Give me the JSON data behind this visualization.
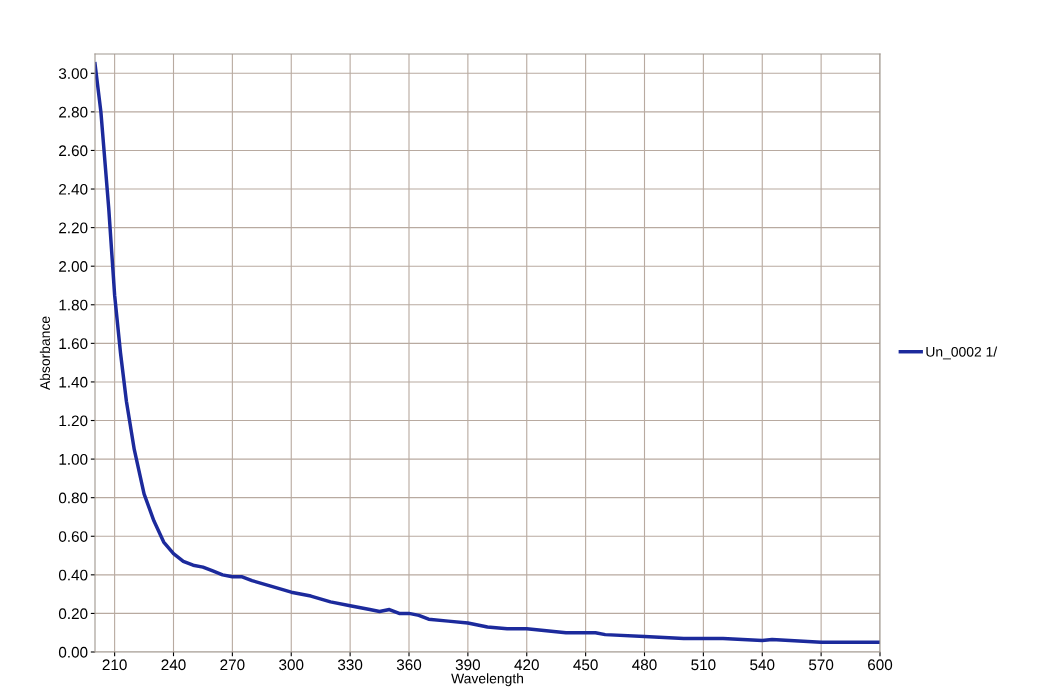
{
  "chart_data": {
    "type": "line",
    "xlabel": "Wavelength",
    "ylabel": "Absorbance",
    "xlim": [
      200,
      600
    ],
    "xticks": [
      210,
      240,
      270,
      300,
      330,
      360,
      390,
      420,
      450,
      480,
      510,
      540,
      570,
      600
    ],
    "ylim": [
      0,
      3.1
    ],
    "yticks": [
      {
        "value": 0,
        "label": "0.00"
      },
      {
        "value": 0.2,
        "label": "0.20"
      },
      {
        "value": 0.4,
        "label": "0.40"
      },
      {
        "value": 0.6,
        "label": "0.60"
      },
      {
        "value": 0.8,
        "label": "0.80"
      },
      {
        "value": 1.0,
        "label": "1.00"
      },
      {
        "value": 1.2,
        "label": "1.20"
      },
      {
        "value": 1.4,
        "label": "1.40"
      },
      {
        "value": 1.6,
        "label": "1.60"
      },
      {
        "value": 1.8,
        "label": "1.80"
      },
      {
        "value": 2.0,
        "label": "2.00"
      },
      {
        "value": 2.2,
        "label": "2.20"
      },
      {
        "value": 2.4,
        "label": "2.40"
      },
      {
        "value": 2.6,
        "label": "2.60"
      },
      {
        "value": 2.8,
        "label": "2.80"
      },
      {
        "value": 3.0,
        "label": "3.00"
      }
    ],
    "grid": true,
    "legend": "right",
    "marker": "none",
    "line_style": "solid",
    "x": [
      200,
      203,
      207,
      210,
      213,
      216,
      220,
      225,
      230,
      235,
      240,
      245,
      250,
      255,
      260,
      265,
      270,
      275,
      280,
      290,
      300,
      310,
      320,
      330,
      340,
      345,
      350,
      355,
      360,
      365,
      370,
      380,
      390,
      400,
      410,
      420,
      430,
      440,
      450,
      455,
      460,
      480,
      500,
      520,
      540,
      545,
      570,
      600
    ],
    "series": [
      {
        "name": "Un_0002 1/",
        "color": "#1c2a9c",
        "values": [
          3.05,
          2.8,
          2.3,
          1.85,
          1.55,
          1.3,
          1.05,
          0.82,
          0.68,
          0.57,
          0.51,
          0.47,
          0.45,
          0.44,
          0.42,
          0.4,
          0.39,
          0.39,
          0.37,
          0.34,
          0.31,
          0.29,
          0.26,
          0.24,
          0.22,
          0.21,
          0.22,
          0.2,
          0.2,
          0.19,
          0.17,
          0.16,
          0.15,
          0.13,
          0.12,
          0.12,
          0.11,
          0.1,
          0.1,
          0.1,
          0.09,
          0.08,
          0.07,
          0.07,
          0.06,
          0.065,
          0.05,
          0.05
        ]
      }
    ]
  }
}
